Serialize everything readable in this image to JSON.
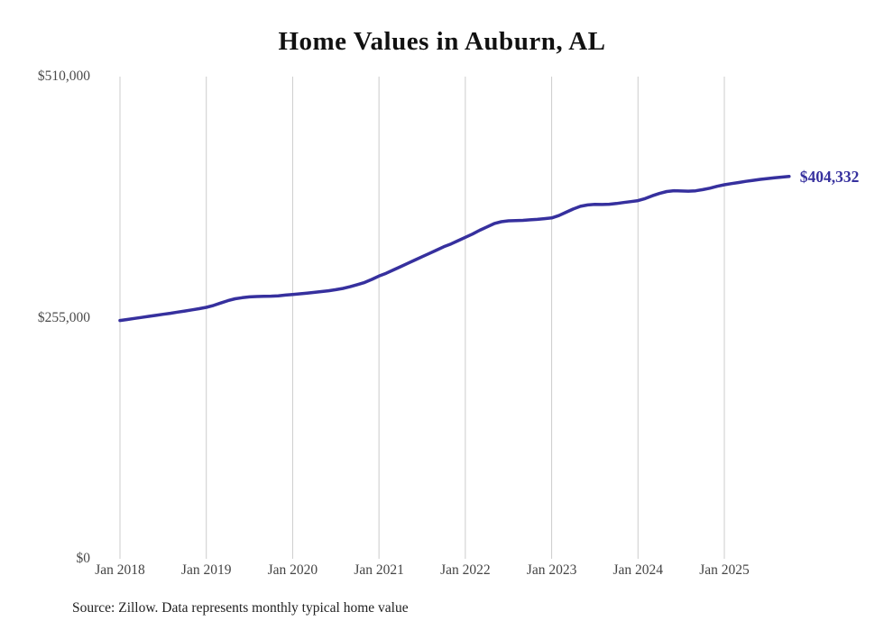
{
  "chart_data": {
    "type": "line",
    "title": "Home Values in Auburn, AL",
    "series_name": "Typical home value",
    "unit": "USD",
    "frequency": "monthly",
    "x_start": "2018-01",
    "x_end": "2025-10",
    "x_tick_labels": [
      "Jan 2018",
      "Jan 2019",
      "Jan 2020",
      "Jan 2021",
      "Jan 2022",
      "Jan 2023",
      "Jan 2024",
      "Jan 2025"
    ],
    "y_tick_labels": [
      "$510,000",
      "$255,000",
      "$0"
    ],
    "y_tick_values": [
      510000,
      255000,
      0
    ],
    "ylim": [
      0,
      510000
    ],
    "grid": "vertical-only",
    "legend": "none",
    "end_label": "$404,332",
    "end_value": 404332,
    "line_color": "#36309e",
    "grid_color": "#cccccc",
    "values": [
      252000,
      253100,
      254200,
      255300,
      256400,
      257500,
      258600,
      259700,
      260900,
      262100,
      263300,
      264500,
      266000,
      268000,
      270500,
      273000,
      275000,
      276200,
      277000,
      277400,
      277600,
      277800,
      278200,
      278900,
      279600,
      280300,
      281000,
      281800,
      282600,
      283500,
      284600,
      286000,
      287800,
      290000,
      292300,
      295500,
      299000,
      302000,
      305500,
      309000,
      312500,
      316000,
      319500,
      323000,
      326500,
      330000,
      333000,
      336500,
      340000,
      343500,
      347500,
      351000,
      354500,
      356500,
      357500,
      357800,
      358000,
      358500,
      359000,
      359800,
      360500,
      363000,
      366500,
      370000,
      372800,
      374300,
      374800,
      374700,
      375000,
      375800,
      376800,
      377800,
      378800,
      381000,
      384000,
      386500,
      388500,
      389300,
      389000,
      388800,
      389200,
      390500,
      392000,
      394000,
      395600,
      396800,
      398000,
      399200,
      400300,
      401300,
      402200,
      403000,
      403700,
      404332
    ],
    "source_note": "Source: Zillow. Data represents monthly typical home value"
  }
}
